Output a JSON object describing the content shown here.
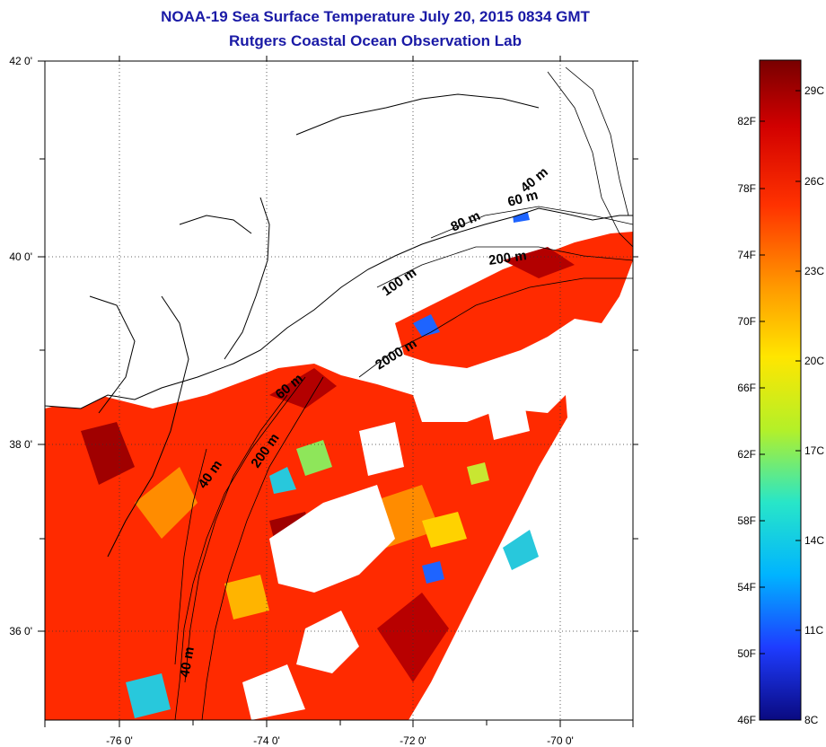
{
  "title": "NOAA-19 Sea Surface Temperature July 20, 2015 0834 GMT",
  "subtitle": "Rutgers Coastal Ocean Observation Lab",
  "map": {
    "latitude_labels": [
      "42 0'",
      "40 0'",
      "38 0'",
      "36 0'"
    ],
    "longitude_labels": [
      "-76 0'",
      "-74 0'",
      "-72 0'",
      "-70 0'"
    ],
    "grid": "dotted",
    "contour_labels": [
      "40 m",
      "60 m",
      "80 m",
      "100 m",
      "200 m",
      "2000 m",
      "60 m",
      "40 m",
      "200 m",
      "40 m"
    ]
  },
  "colorbar": {
    "fahrenheit_labels": [
      "82F",
      "78F",
      "74F",
      "70F",
      "66F",
      "62F",
      "58F",
      "54F",
      "50F",
      "46F"
    ],
    "celsius_labels": [
      "29C",
      "26C",
      "23C",
      "20C",
      "17C",
      "14C",
      "11C",
      "8C"
    ],
    "colors": [
      "#0a0a80",
      "#1e3cff",
      "#00b4ff",
      "#28e6c8",
      "#b4f028",
      "#ffe600",
      "#ff9600",
      "#ff3200",
      "#d20000",
      "#780000"
    ]
  },
  "colors": {
    "title": "#1a1aa6",
    "land": "#ffffff",
    "coastline": "#000000",
    "warm_water": "#ff2a00",
    "cloud_mask": "#ffffff"
  }
}
